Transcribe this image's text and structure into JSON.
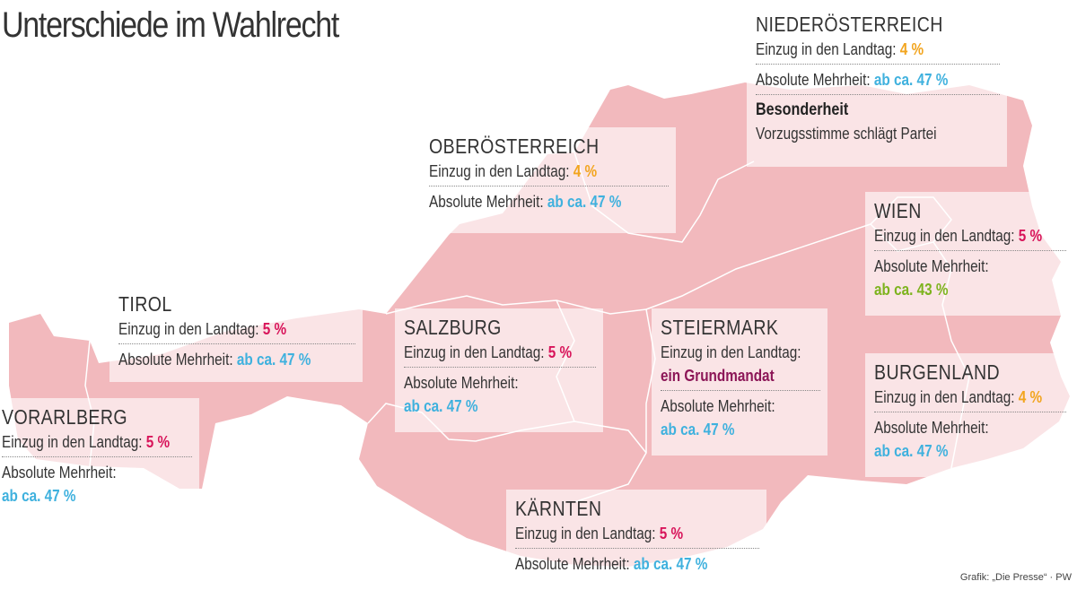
{
  "title": "Unterschiede im Wahlrecht",
  "credit": "Grafik: „Die Presse“ · PW",
  "colors": {
    "map": "#f2b9bd",
    "red": "#d8145a",
    "orange": "#f2a51f",
    "blue": "#3fb1de",
    "green": "#7db31d",
    "purple": "#8c1657"
  },
  "states": {
    "niederoesterreich": {
      "name": "NIEDERÖSTERREICH",
      "entry_label": "Einzug in den Landtag:",
      "entry_value": "4 %",
      "majority_label": "Absolute Mehrheit:",
      "majority_value": "ab ca. 47 %",
      "special_label": "Besonderheit",
      "special_text": "Vorzugsstimme schlägt Partei"
    },
    "oberoesterreich": {
      "name": "OBERÖSTERREICH",
      "entry_label": "Einzug in den Landtag:",
      "entry_value": "4 %",
      "majority_label": "Absolute Mehrheit:",
      "majority_value": "ab ca. 47 %"
    },
    "wien": {
      "name": "WIEN",
      "entry_label": "Einzug in den Landtag:",
      "entry_value": "5 %",
      "majority_label": "Absolute Mehrheit:",
      "majority_value": "ab ca. 43 %"
    },
    "tirol": {
      "name": "TIROL",
      "entry_label": "Einzug in den Landtag:",
      "entry_value": "5 %",
      "majority_label": "Absolute Mehrheit:",
      "majority_value": "ab ca. 47 %"
    },
    "salzburg": {
      "name": "SALZBURG",
      "entry_label": "Einzug in den Landtag:",
      "entry_value": "5 %",
      "majority_label": "Absolute Mehrheit:",
      "majority_value": "ab ca. 47 %"
    },
    "steiermark": {
      "name": "STEIERMARK",
      "entry_label": "Einzug in den Landtag:",
      "entry_value": "ein Grundmandat",
      "majority_label": "Absolute Mehrheit:",
      "majority_value": "ab ca. 47 %"
    },
    "burgenland": {
      "name": "BURGENLAND",
      "entry_label": "Einzug in den Landtag:",
      "entry_value": "4 %",
      "majority_label": "Absolute Mehrheit:",
      "majority_value": "ab ca. 47 %"
    },
    "vorarlberg": {
      "name": "VORARLBERG",
      "entry_label": "Einzug in den Landtag:",
      "entry_value": "5 %",
      "majority_label": "Absolute Mehrheit:",
      "majority_value": "ab ca. 47 %"
    },
    "kaernten": {
      "name": "KÄRNTEN",
      "entry_label": "Einzug in den Landtag:",
      "entry_value": "5 %",
      "majority_label": "Absolute Mehrheit:",
      "majority_value": "ab ca. 47 %"
    }
  }
}
